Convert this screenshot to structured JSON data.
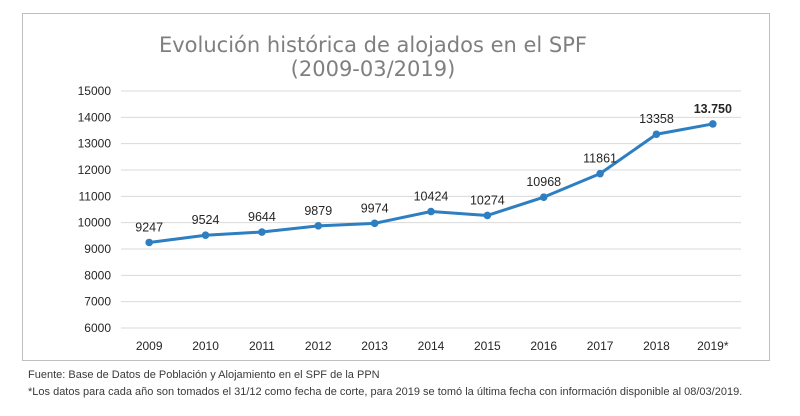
{
  "chart_data": {
    "type": "line",
    "title": [
      "Evolución histórica de alojados en el SPF",
      "(2009-03/2019)"
    ],
    "categories": [
      "2009",
      "2010",
      "2011",
      "2012",
      "2013",
      "2014",
      "2015",
      "2016",
      "2017",
      "2018",
      "2019*"
    ],
    "series": [
      {
        "values": [
          9247,
          9524,
          9644,
          9879,
          9974,
          10424,
          10274,
          10968,
          11861,
          13358,
          13750
        ],
        "data_labels": [
          "9247",
          "9524",
          "9644",
          "9879",
          "9974",
          "10424",
          "10274",
          "10968",
          "11861",
          "13358",
          "13.750"
        ],
        "color": "#2e7fc1"
      }
    ],
    "yticks": [
      "6000",
      "7000",
      "8000",
      "9000",
      "10000",
      "11000",
      "12000",
      "13000",
      "14000",
      "15000"
    ],
    "ylim": [
      6000,
      15000
    ],
    "grid": true,
    "legend": "none"
  },
  "source_text": "Fuente: Base de Datos de Población y Alojamiento en el SPF de la PPN",
  "footnote_text": "*Los datos para cada año son tomados el 31/12 como fecha de corte, para 2019 se tomó la última fecha con información disponible al 08/03/2019."
}
